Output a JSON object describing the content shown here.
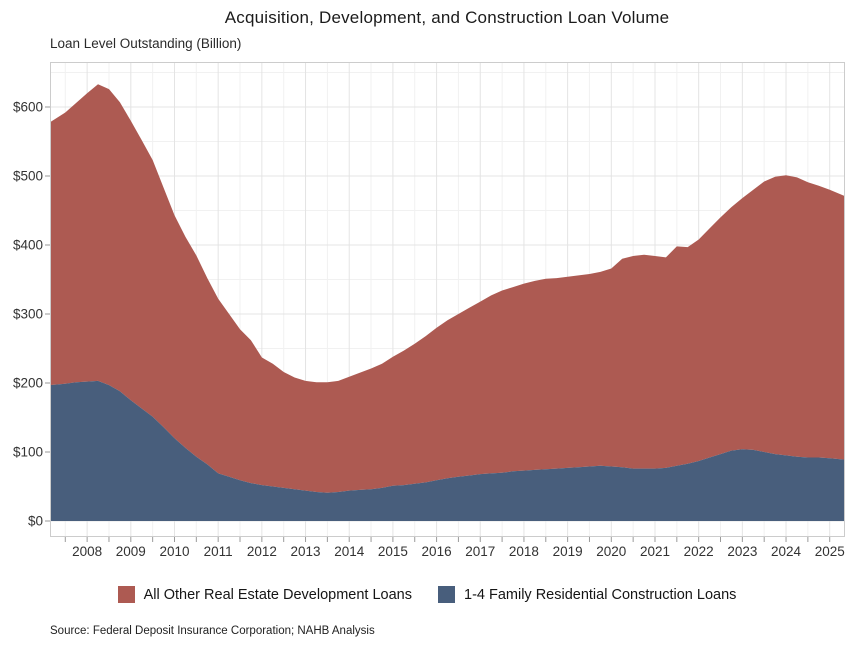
{
  "chart": {
    "title": "Acquisition, Development, and Construction Loan Volume",
    "unit_label": "Loan Level Outstanding (Billion)",
    "source": "Source: Federal Deposit Insurance Corporation; NAHB Analysis"
  },
  "legend": {
    "items": [
      {
        "label": "All Other Real Estate Development Loans",
        "color": "#ad5a52"
      },
      {
        "label": "1-4 Family Residential Construction Loans",
        "color": "#485e7c"
      }
    ]
  },
  "colors": {
    "all_other_fill": "#ad5a52",
    "one_to_four_fill": "#485e7c",
    "grid_major": "#e4e4e4",
    "grid_minor": "#f1f1f1",
    "panel_border": "#cccccc",
    "tick": "#9a9a9a",
    "axis_text": "#333333"
  },
  "chart_data": {
    "type": "area",
    "stacked": true,
    "title": "Acquisition, Development, and Construction Loan Volume",
    "xlabel": "",
    "ylabel": "Loan Level Outstanding (Billion)",
    "legend_position": "bottom",
    "grid": true,
    "xlim": [
      2007.15,
      2025.35
    ],
    "ylim": [
      0,
      665
    ],
    "y_ticks": {
      "values": [
        0,
        100,
        200,
        300,
        400,
        500,
        600
      ],
      "labels": [
        "$0",
        "$100",
        "$200",
        "$300",
        "$400",
        "$500",
        "$600"
      ]
    },
    "x_ticks": {
      "values": [
        2008,
        2009,
        2010,
        2011,
        2012,
        2013,
        2014,
        2015,
        2016,
        2017,
        2018,
        2019,
        2020,
        2021,
        2022,
        2023,
        2024,
        2025
      ],
      "labels": [
        "2008",
        "2009",
        "2010",
        "2011",
        "2012",
        "2013",
        "2014",
        "2015",
        "2016",
        "2017",
        "2018",
        "2019",
        "2020",
        "2021",
        "2022",
        "2023",
        "2024",
        "2025"
      ]
    },
    "x": [
      2007.15,
      2007.5,
      2007.75,
      2008,
      2008.25,
      2008.5,
      2008.75,
      2009,
      2009.25,
      2009.5,
      2009.75,
      2010,
      2010.25,
      2010.5,
      2010.75,
      2011,
      2011.25,
      2011.5,
      2011.75,
      2012,
      2012.25,
      2012.5,
      2012.75,
      2013,
      2013.25,
      2013.5,
      2013.75,
      2014,
      2014.25,
      2014.5,
      2014.75,
      2015,
      2015.25,
      2015.5,
      2015.75,
      2016,
      2016.25,
      2016.5,
      2016.75,
      2017,
      2017.25,
      2017.5,
      2017.75,
      2018,
      2018.25,
      2018.5,
      2018.75,
      2019,
      2019.25,
      2019.5,
      2019.75,
      2020,
      2020.25,
      2020.5,
      2020.75,
      2021,
      2021.25,
      2021.5,
      2021.75,
      2022,
      2022.25,
      2022.5,
      2022.75,
      2023,
      2023.25,
      2023.5,
      2023.75,
      2024,
      2024.25,
      2024.5,
      2024.75,
      2025,
      2025.34
    ],
    "series": [
      {
        "name": "1-4 Family Residential Construction Loans",
        "color": "#485e7c",
        "values": [
          197,
          199,
          201,
          202,
          203,
          197,
          188,
          175,
          163,
          151,
          136,
          120,
          106,
          93,
          82,
          69,
          64,
          59,
          55,
          52,
          50,
          48,
          46,
          44,
          42,
          41,
          42,
          44,
          45,
          46,
          48,
          51,
          52,
          54,
          56,
          59,
          62,
          64,
          66,
          68,
          69,
          70,
          72,
          73,
          74,
          75,
          76,
          77,
          78,
          79,
          80,
          79,
          78,
          76,
          76,
          76,
          77,
          80,
          83,
          87,
          92,
          97,
          102,
          104,
          103,
          100,
          97,
          95,
          93,
          92,
          92,
          91,
          89
        ]
      },
      {
        "name": "All Other Real Estate Development Loans",
        "color": "#ad5a52",
        "values": [
          381,
          393,
          405,
          418,
          430,
          429,
          419,
          405,
          389,
          372,
          347,
          323,
          306,
          292,
          270,
          253,
          236,
          219,
          207,
          185,
          178,
          168,
          162,
          159,
          159,
          160,
          161,
          165,
          170,
          175,
          180,
          187,
          195,
          203,
          212,
          221,
          229,
          236,
          243,
          250,
          258,
          264,
          267,
          271,
          274,
          276,
          276,
          277,
          278,
          279,
          281,
          287,
          302,
          308,
          310,
          308,
          305,
          318,
          314,
          321,
          332,
          343,
          353,
          364,
          377,
          392,
          402,
          406,
          405,
          399,
          394,
          389,
          382
        ]
      }
    ]
  }
}
